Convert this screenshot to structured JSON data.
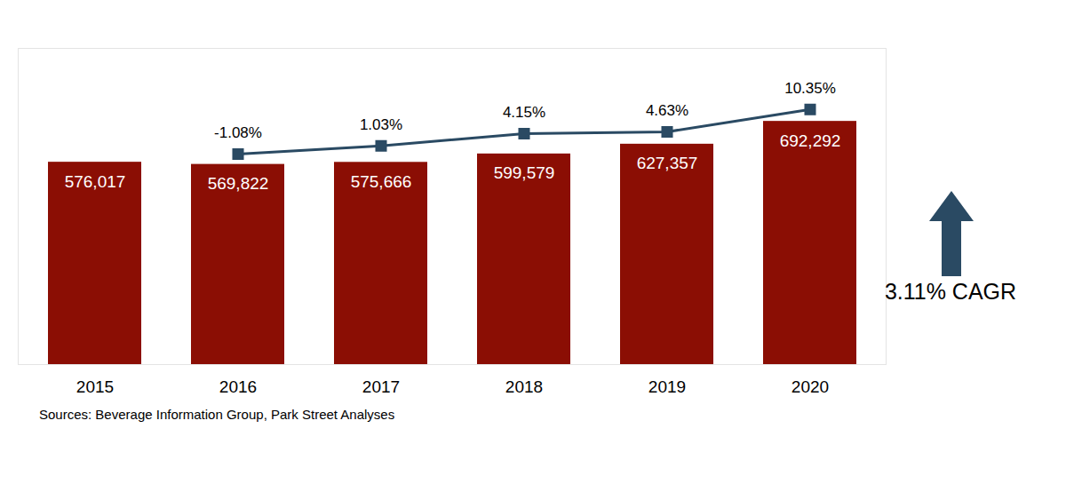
{
  "chart_data": {
    "type": "bar",
    "categories": [
      "2015",
      "2016",
      "2017",
      "2018",
      "2019",
      "2020"
    ],
    "series": [
      {
        "type": "bar",
        "color": "#8b0e04",
        "values": [
          576017,
          569822,
          575666,
          599579,
          627357,
          692292
        ],
        "value_labels": [
          "576,017",
          "569,822",
          "575,666",
          "599,579",
          "627,357",
          "692,292"
        ]
      },
      {
        "type": "line",
        "axis": "y2",
        "color": "#2a4a63",
        "marker": "square",
        "values": [
          null,
          -1.08,
          1.03,
          4.15,
          4.63,
          10.35
        ],
        "value_labels": [
          null,
          "-1.08%",
          "1.03%",
          "4.15%",
          "4.63%",
          "10.35%"
        ]
      }
    ],
    "ylim": [
      0,
      900000
    ],
    "yticks": [],
    "y2lim": [
      -55,
      26
    ],
    "y2ticks": [],
    "data_labels": true,
    "tick_labels": "x",
    "grid": false,
    "annotations": [
      "3.11% CAGR"
    ],
    "caption": "Sources: Beverage Information Group, Park Street Analyses"
  }
}
